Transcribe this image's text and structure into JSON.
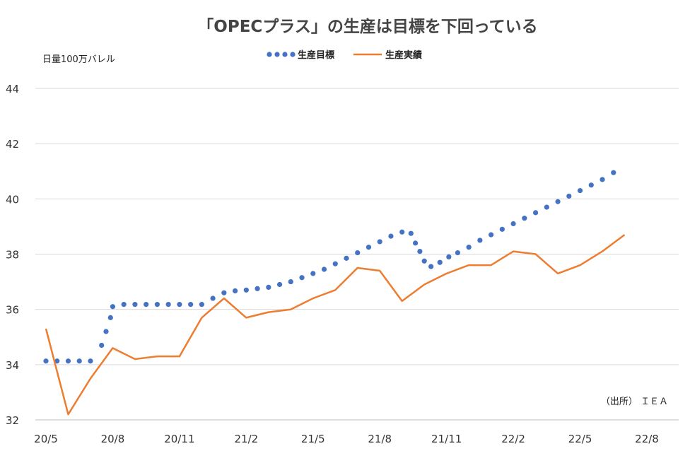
{
  "chart_data": {
    "type": "line",
    "title": "「OPECプラス」の生産は目標を下回っている",
    "ylabel": "日量100万バレル",
    "source": "（出所） ＩＥＡ",
    "ylim": [
      32,
      44
    ],
    "yticks": [
      "32",
      "34",
      "36",
      "38",
      "40",
      "42",
      "44"
    ],
    "xlim": [
      0,
      27
    ],
    "xticks": [
      {
        "label": "20/5",
        "x": 0
      },
      {
        "label": "20/8",
        "x": 3
      },
      {
        "label": "20/11",
        "x": 6
      },
      {
        "label": "21/2",
        "x": 9
      },
      {
        "label": "21/5",
        "x": 12
      },
      {
        "label": "21/8",
        "x": 15
      },
      {
        "label": "21/11",
        "x": 18
      },
      {
        "label": "22/2",
        "x": 21
      },
      {
        "label": "22/5",
        "x": 24
      },
      {
        "label": "22/8",
        "x": 27
      }
    ],
    "grid": true,
    "legend": "top-center",
    "series": [
      {
        "name": "生産目標",
        "style": "dotted",
        "color": "#4472C4",
        "x": [
          0,
          0.5,
          1,
          1.5,
          2,
          2.5,
          2.7,
          2.9,
          3,
          3.5,
          4,
          4.5,
          5,
          5.5,
          6,
          6.5,
          7,
          7.5,
          8,
          8.5,
          9,
          9.5,
          10,
          10.5,
          11,
          11.5,
          12,
          12.5,
          13,
          13.5,
          14,
          14.5,
          15,
          15.5,
          16,
          16.4,
          16.6,
          16.8,
          17,
          17.3,
          17.7,
          18.1,
          18.5,
          19,
          19.5,
          20,
          20.5,
          21,
          21.5,
          22,
          22.5,
          23,
          23.5,
          24,
          24.5,
          25,
          25.5
        ],
        "values": [
          34.13,
          34.13,
          34.13,
          34.13,
          34.13,
          34.7,
          35.2,
          35.7,
          36.1,
          36.18,
          36.18,
          36.18,
          36.18,
          36.18,
          36.18,
          36.18,
          36.18,
          36.4,
          36.6,
          36.67,
          36.7,
          36.75,
          36.8,
          36.9,
          37.0,
          37.15,
          37.3,
          37.45,
          37.65,
          37.85,
          38.05,
          38.25,
          38.45,
          38.65,
          38.8,
          38.75,
          38.4,
          38.1,
          37.75,
          37.55,
          37.7,
          37.9,
          38.05,
          38.25,
          38.5,
          38.7,
          38.9,
          39.1,
          39.3,
          39.5,
          39.7,
          39.9,
          40.1,
          40.3,
          40.5,
          40.7,
          40.95
        ]
      },
      {
        "name": "生産実績",
        "style": "solid",
        "color": "#ED7D31",
        "x": [
          0,
          1,
          2,
          3,
          4,
          5,
          6,
          7,
          8,
          9,
          10,
          11,
          12,
          13,
          14,
          15,
          16,
          17,
          18,
          19,
          20,
          21,
          22,
          23,
          24,
          25,
          26
        ],
        "values": [
          35.3,
          32.2,
          33.5,
          34.6,
          34.2,
          34.3,
          34.3,
          35.7,
          36.4,
          35.7,
          35.9,
          36.0,
          36.4,
          36.7,
          37.5,
          37.4,
          36.3,
          36.9,
          37.3,
          37.6,
          37.6,
          38.1,
          38.0,
          37.3,
          37.6,
          38.1,
          38.7
        ]
      }
    ]
  }
}
